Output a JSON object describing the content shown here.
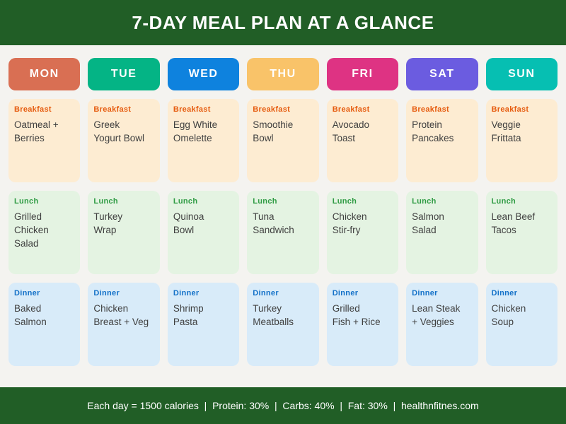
{
  "title": "7-DAY MEAL PLAN AT A GLANCE",
  "meal_labels": {
    "breakfast": "Breakfast",
    "lunch": "Lunch",
    "dinner": "Dinner"
  },
  "days": [
    {
      "label": "MON",
      "color": "#d96f53",
      "breakfast": "Oatmeal +\nBerries",
      "lunch": "Grilled\nChicken Salad",
      "dinner": "Baked\nSalmon"
    },
    {
      "label": "TUE",
      "color": "#04b485",
      "breakfast": "Greek\nYogurt Bowl",
      "lunch": "Turkey\nWrap",
      "dinner": "Chicken\nBreast + Veg"
    },
    {
      "label": "WED",
      "color": "#0e82de",
      "breakfast": "Egg White\nOmelette",
      "lunch": "Quinoa\nBowl",
      "dinner": "Shrimp\nPasta"
    },
    {
      "label": "THU",
      "color": "#f9c369",
      "breakfast": "Smoothie\nBowl",
      "lunch": "Tuna\nSandwich",
      "dinner": "Turkey\nMeatballs"
    },
    {
      "label": "FRI",
      "color": "#de3383",
      "breakfast": "Avocado\nToast",
      "lunch": "Chicken\nStir-fry",
      "dinner": "Grilled\nFish + Rice"
    },
    {
      "label": "SAT",
      "color": "#6b5ce0",
      "breakfast": "Protein\nPancakes",
      "lunch": "Salmon\nSalad",
      "dinner": "Lean Steak\n+ Veggies"
    },
    {
      "label": "SUN",
      "color": "#06bfb2",
      "breakfast": "Veggie\nFrittata",
      "lunch": "Lean Beef\nTacos",
      "dinner": "Chicken\nSoup"
    }
  ],
  "footer": {
    "calories": "Each day = 1500 calories",
    "protein": "Protein: 30%",
    "carbs": "Carbs: 40%",
    "fat": "Fat: 30%",
    "website": "healthnfitnes.com",
    "text": "Each day = 1500 calories  |  Protein: 30%  |  Carbs: 40%  |  Fat: 30%  |  healthnfitnes.com"
  },
  "colors": {
    "header-bg": "#215e26",
    "page-bg": "#f4f3f0",
    "breakfast-bg": "#fdecd2",
    "lunch-bg": "#e4f3e2",
    "dinner-bg": "#d8ebf9",
    "breakfast-label": "#e65c0f",
    "lunch-label": "#2e9b43",
    "dinner-label": "#1371c8",
    "meal-text": "#3f3f3f"
  }
}
